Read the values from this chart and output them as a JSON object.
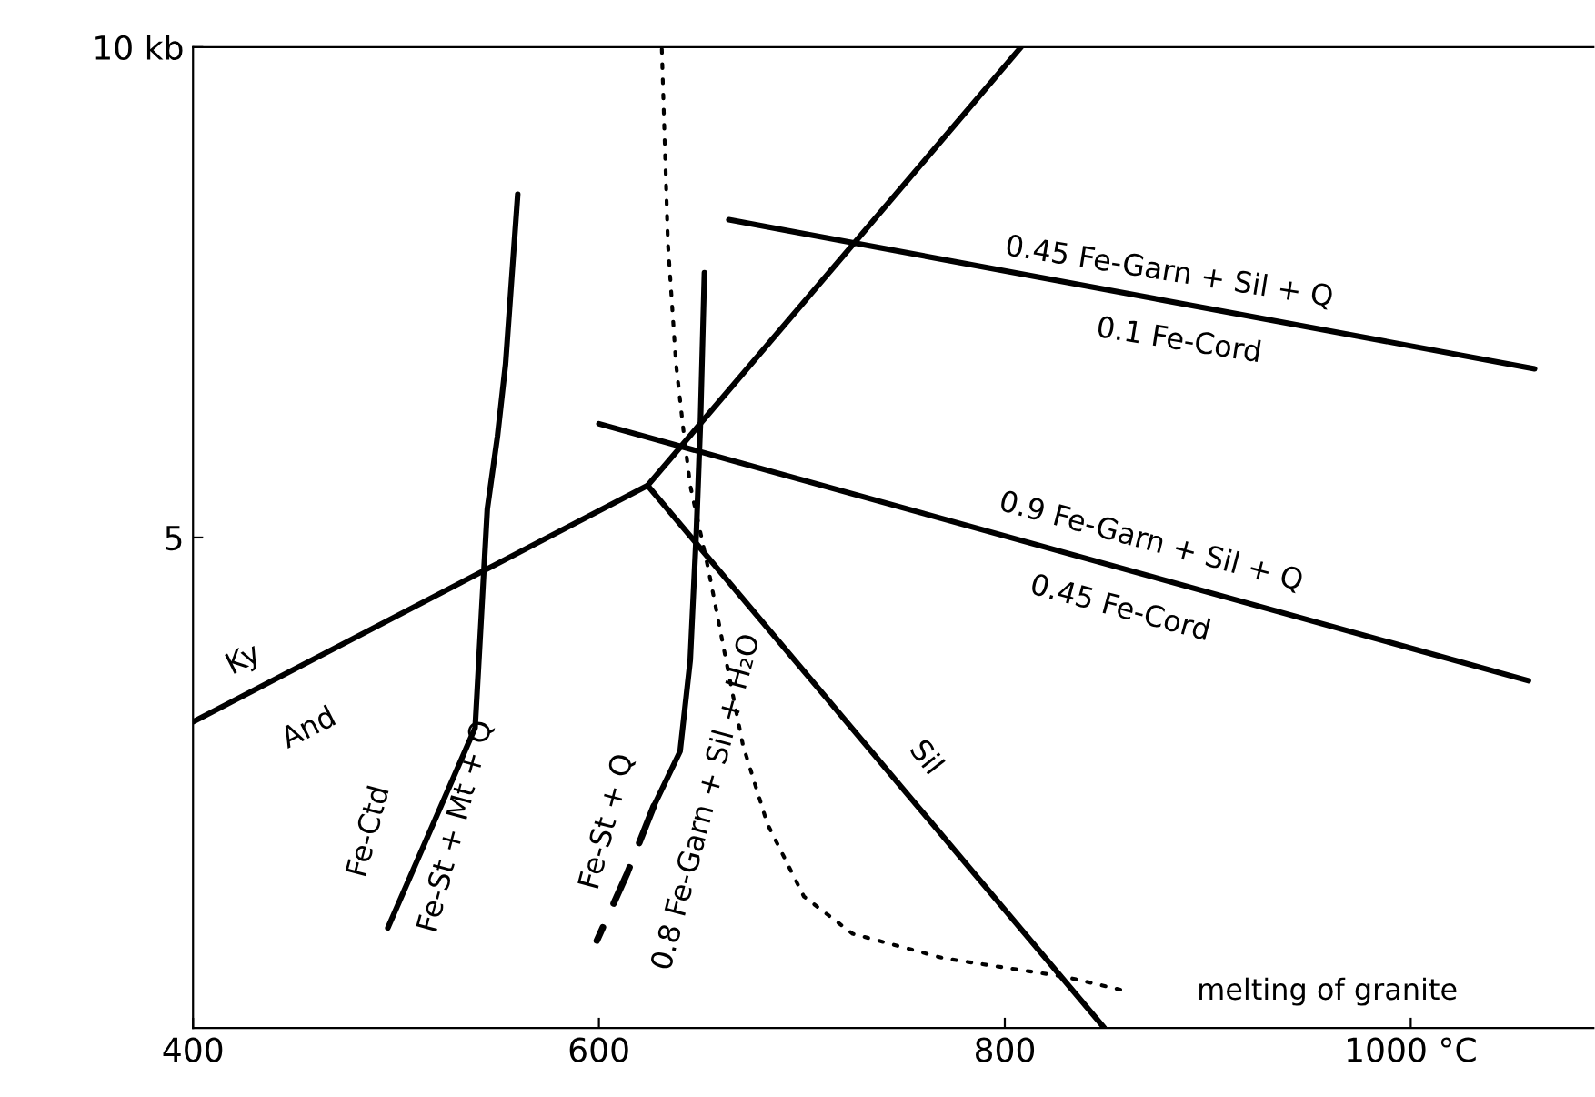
{
  "chart_data": {
    "type": "line",
    "xlim": [
      400,
      1090
    ],
    "ylim": [
      0,
      10
    ],
    "xticks": [
      400,
      600,
      800,
      {
        "value": 1000,
        "label": "1000 °C"
      }
    ],
    "yticks": [
      5,
      {
        "value": 10,
        "label": "10 kb"
      }
    ],
    "grid": false,
    "legend": false,
    "series": [
      {
        "color": "#000000",
        "line_style": "solid",
        "x": [
          400,
          624,
          808
        ],
        "values": [
          3.12,
          5.53,
          10
        ]
      },
      {
        "color": "#000000",
        "line_style": "solid",
        "x": [
          624,
          849
        ],
        "values": [
          5.53,
          0
        ]
      },
      {
        "color": "#000000",
        "line_style": "solid",
        "x": [
          496,
          539,
          545,
          550,
          554,
          560
        ],
        "values": [
          1.02,
          3.06,
          5.29,
          6.03,
          6.77,
          8.5
        ]
      },
      {
        "color": "#000000",
        "line_style": "solid",
        "x": [
          627,
          640,
          645,
          648,
          650,
          652
        ],
        "values": [
          2.26,
          2.82,
          3.75,
          5.05,
          6.16,
          7.7
        ]
      },
      {
        "color": "#000000",
        "line_style": "dashed",
        "x": [
          627,
          614,
          599
        ],
        "values": [
          2.26,
          1.58,
          0.89
        ]
      },
      {
        "color": "#000000",
        "line_style": "solid",
        "x": [
          664,
          1061
        ],
        "values": [
          8.24,
          6.72
        ]
      },
      {
        "color": "#000000",
        "line_style": "solid",
        "x": [
          600,
          1058
        ],
        "values": [
          6.16,
          3.54
        ]
      },
      {
        "color": "#000000",
        "line_style": "dotted",
        "x": [
          631,
          634,
          638,
          642,
          645,
          654,
          665,
          671,
          683,
          701,
          725,
          770,
          830,
          861
        ],
        "values": [
          9.98,
          8.0,
          6.77,
          6.03,
          5.53,
          4.67,
          3.5,
          2.88,
          2.08,
          1.34,
          0.96,
          0.71,
          0.52,
          0.37
        ]
      }
    ],
    "annotations": [
      "Ky",
      "And",
      "Fe-Ctd",
      "Fe-St + Mt + Q",
      "Fe-St + Q",
      "0.8 Fe-Garn + Sil + H₂O",
      "Sil",
      "0.45 Fe-Garn + Sil + Q",
      "0.1 Fe-Cord",
      "0.9 Fe-Garn + Sil + Q",
      "0.45 Fe-Cord",
      "melting of granite"
    ]
  }
}
